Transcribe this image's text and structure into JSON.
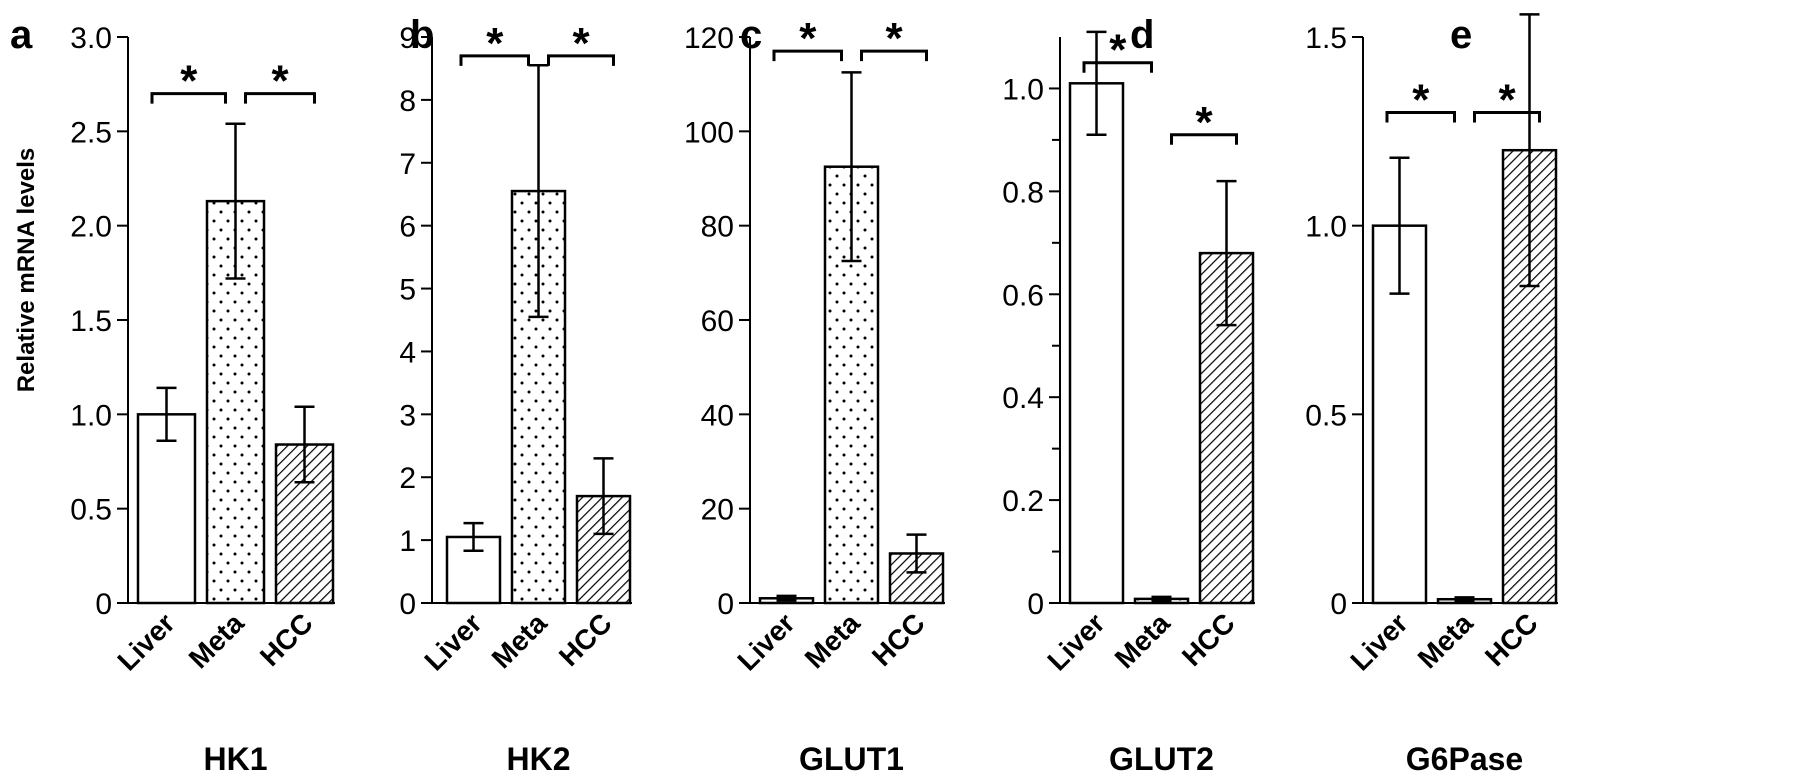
{
  "figure": {
    "ylabel": "Relative mRNA levels"
  },
  "chart_data": [
    {
      "panel": "a",
      "type": "bar",
      "title": "HK1",
      "categories": [
        "Liver",
        "Meta",
        "HCC"
      ],
      "values": [
        1.0,
        2.13,
        0.84
      ],
      "errors": [
        0.14,
        0.41,
        0.2
      ],
      "fill_patterns": [
        "none",
        "dots",
        "hatch"
      ],
      "ylim": [
        0,
        3.0
      ],
      "ticks": [
        0,
        0.5,
        1.0,
        1.5,
        2.0,
        2.5,
        3.0
      ],
      "tick_labels": [
        "0",
        "0.5",
        "1.0",
        "1.5",
        "2.0",
        "2.5",
        "3.0"
      ],
      "minor_ticks": [],
      "significance": [
        {
          "from": 0,
          "to": 1,
          "label": "*",
          "y": 2.7
        },
        {
          "from": 1,
          "to": 2,
          "label": "*",
          "y": 2.7
        }
      ]
    },
    {
      "panel": "b",
      "type": "bar",
      "title": "HK2",
      "categories": [
        "Liver",
        "Meta",
        "HCC"
      ],
      "values": [
        1.05,
        6.55,
        1.7
      ],
      "errors": [
        0.22,
        2.0,
        0.6
      ],
      "fill_patterns": [
        "none",
        "dots",
        "hatch"
      ],
      "ylim": [
        0,
        9
      ],
      "ticks": [
        0,
        1,
        2,
        3,
        4,
        5,
        6,
        7,
        8,
        9
      ],
      "tick_labels": [
        "0",
        "1",
        "2",
        "3",
        "4",
        "5",
        "6",
        "7",
        "8",
        "9"
      ],
      "minor_ticks": [],
      "significance": [
        {
          "from": 0,
          "to": 1,
          "label": "*",
          "y": 8.7
        },
        {
          "from": 1,
          "to": 2,
          "label": "*",
          "y": 8.7
        }
      ]
    },
    {
      "panel": "c",
      "type": "bar",
      "title": "GLUT1",
      "categories": [
        "Liver",
        "Meta",
        "HCC"
      ],
      "values": [
        1.0,
        92.5,
        10.5
      ],
      "errors": [
        0.5,
        20.0,
        4.0
      ],
      "fill_patterns": [
        "none",
        "dots",
        "hatch"
      ],
      "ylim": [
        0,
        120
      ],
      "ticks": [
        0,
        20,
        40,
        60,
        80,
        100,
        120
      ],
      "tick_labels": [
        "0",
        "20",
        "40",
        "60",
        "80",
        "100",
        "120"
      ],
      "minor_ticks": [],
      "significance": [
        {
          "from": 0,
          "to": 1,
          "label": "*",
          "y": 117
        },
        {
          "from": 1,
          "to": 2,
          "label": "*",
          "y": 117
        }
      ]
    },
    {
      "panel": "d",
      "type": "bar",
      "title": "GLUT2",
      "categories": [
        "Liver",
        "Meta",
        "HCC"
      ],
      "values": [
        1.01,
        0.008,
        0.68
      ],
      "errors": [
        0.1,
        0.004,
        0.14
      ],
      "fill_patterns": [
        "none",
        "dots",
        "hatch"
      ],
      "ylim": [
        0,
        1.1
      ],
      "ticks": [
        0,
        0.2,
        0.4,
        0.6,
        0.8,
        1.0
      ],
      "tick_labels": [
        "0",
        "0.2",
        "0.4",
        "0.6",
        "0.8",
        "1.0"
      ],
      "minor_ticks": [
        0.1,
        0.3,
        0.5,
        0.7,
        0.9
      ],
      "significance": [
        {
          "from": 0,
          "to": 1,
          "label": "*",
          "y": 1.05
        },
        {
          "from": 1,
          "to": 2,
          "label": "*",
          "y": 0.91
        }
      ]
    },
    {
      "panel": "e",
      "type": "bar",
      "title": "G6Pase",
      "categories": [
        "Liver",
        "Meta",
        "HCC"
      ],
      "values": [
        1.0,
        0.01,
        1.2
      ],
      "errors": [
        0.18,
        0.005,
        0.36
      ],
      "fill_patterns": [
        "none",
        "dots",
        "hatch"
      ],
      "ylim": [
        0,
        1.5
      ],
      "ticks": [
        0,
        0.5,
        1.0,
        1.5
      ],
      "tick_labels": [
        "0",
        "0.5",
        "1.0",
        "1.5"
      ],
      "minor_ticks": [],
      "significance": [
        {
          "from": 0,
          "to": 1,
          "label": "*",
          "y": 1.3
        },
        {
          "from": 1,
          "to": 2,
          "label": "*",
          "y": 1.3
        }
      ]
    }
  ]
}
